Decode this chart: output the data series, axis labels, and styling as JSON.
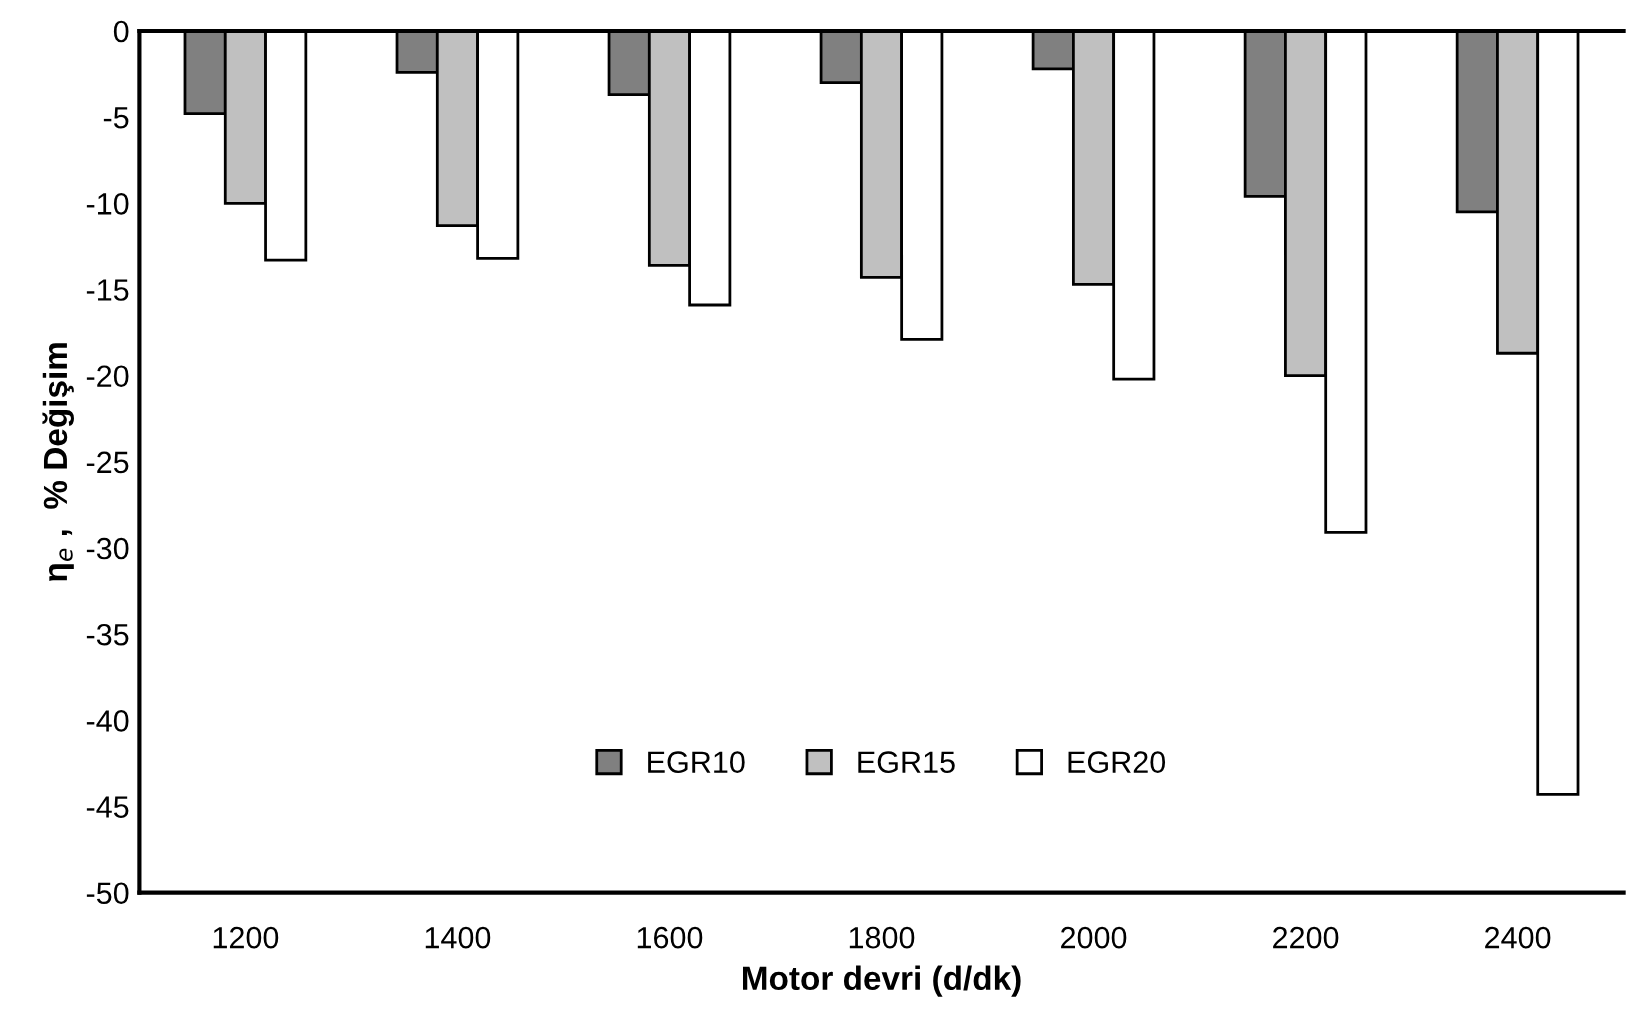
{
  "chart_data": {
    "type": "bar",
    "xlabel": "Motor devri (d/dk)",
    "ylabel": "η$_{e}$ ,  % Değişim",
    "categories": [
      "1200",
      "1400",
      "1600",
      "1800",
      "2000",
      "2200",
      "2400"
    ],
    "series": [
      {
        "name": "EGR10",
        "color": "#808080",
        "values": [
          -4.8,
          -2.4,
          -3.7,
          -3.0,
          -2.2,
          -9.6,
          -10.5
        ]
      },
      {
        "name": "EGR15",
        "color": "#c0c0c0",
        "values": [
          -10.0,
          -11.3,
          -13.6,
          -14.3,
          -14.7,
          -20.0,
          -18.7
        ]
      },
      {
        "name": "EGR20",
        "color": "#ffffff",
        "values": [
          -13.3,
          -13.2,
          -15.9,
          -17.9,
          -20.2,
          -29.1,
          -44.3
        ]
      }
    ],
    "ylim": [
      -50,
      0
    ],
    "yticks": [
      -50,
      -45,
      -40,
      -35,
      -30,
      -25,
      -20,
      -15,
      -10,
      -5,
      0
    ],
    "grid": false,
    "legend": "bottom"
  }
}
